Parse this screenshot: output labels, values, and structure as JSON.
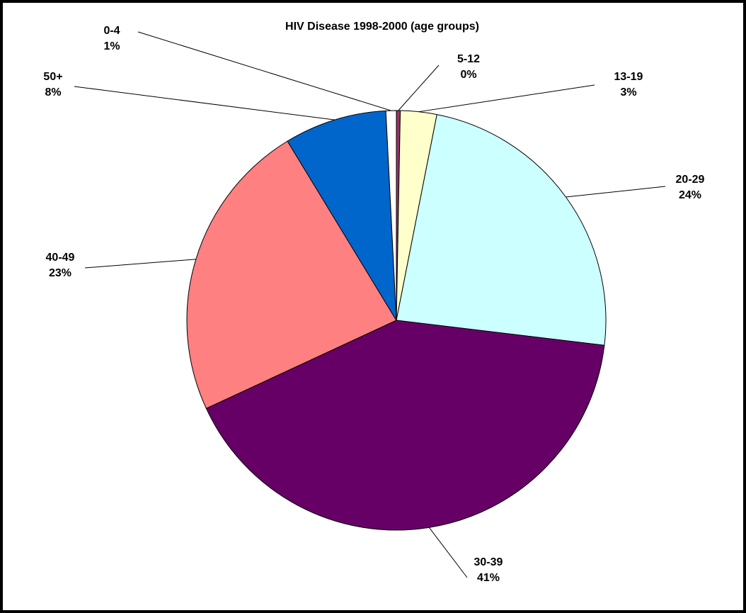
{
  "chart_data": {
    "type": "pie",
    "title": "HIV Disease 1998-2000 (age groups)",
    "categories": [
      "5-12",
      "13-19",
      "20-29",
      "30-39",
      "40-49",
      "50+",
      "0-4"
    ],
    "values": [
      0.3,
      2.8,
      23.8,
      41.2,
      23.2,
      7.9,
      0.8
    ],
    "value_labels": [
      "0%",
      "3%",
      "24%",
      "41%",
      "23%",
      "8%",
      "1%"
    ],
    "colors": [
      "#993366",
      "#ffffcc",
      "#ccffff",
      "#660066",
      "#ff8080",
      "#0066cc",
      "#ffffff"
    ]
  }
}
